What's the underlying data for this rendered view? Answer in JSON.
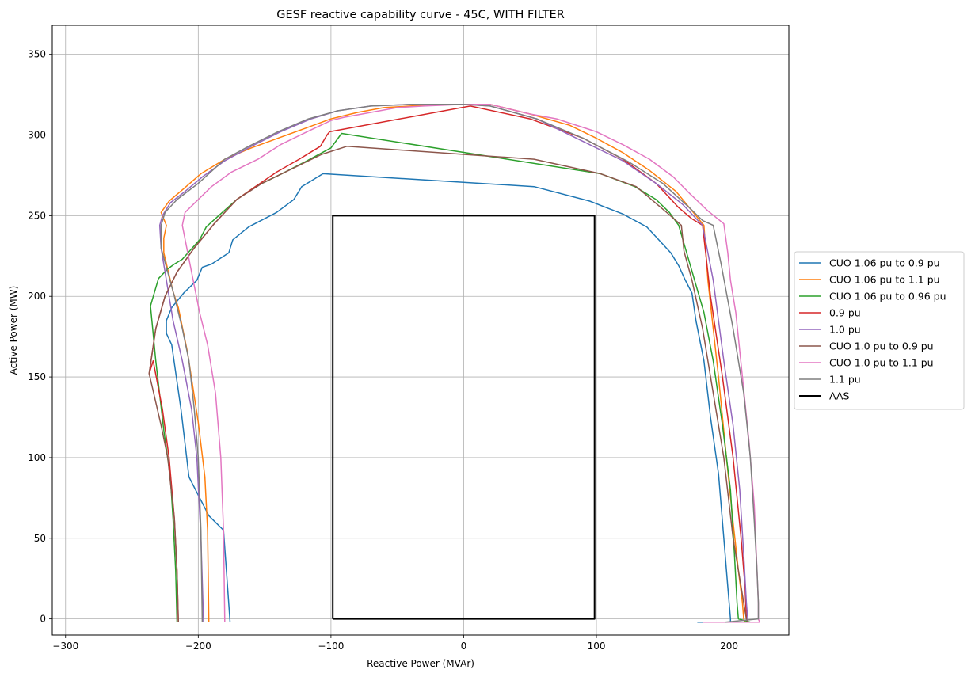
{
  "chart_data": {
    "type": "line",
    "title": "GESF reactive capability curve - 45C, WITH FILTER",
    "xlabel": "Reactive Power (MVAr)",
    "ylabel": "Active Power (MW)",
    "xlim": [
      -310,
      245
    ],
    "ylim": [
      -10,
      368
    ],
    "xticks": [
      -300,
      -200,
      -100,
      0,
      100,
      200
    ],
    "yticks": [
      0,
      50,
      100,
      150,
      200,
      250,
      300,
      350
    ],
    "grid": true,
    "legend_position": "right-outside",
    "series": [
      {
        "name": "CUO 1.06 pu to 0.9 pu",
        "color": "#1f77b4",
        "x": [
          -176,
          -181,
          -192,
          -207,
          -213,
          -220,
          -224,
          -224,
          -220,
          -211,
          -201,
          -197,
          -190,
          -177,
          -174,
          -162,
          -141,
          -128,
          -122,
          -106,
          53,
          95,
          120,
          138,
          147,
          156,
          162,
          167,
          172,
          175,
          181,
          186,
          192,
          196,
          199,
          201,
          201,
          176
        ],
        "y": [
          -2,
          55,
          64,
          88,
          130,
          170,
          177,
          185,
          193,
          202,
          210,
          218,
          220,
          227,
          235,
          243,
          252,
          260,
          268,
          276,
          268,
          259,
          251,
          243,
          235,
          227,
          219,
          210,
          202,
          185,
          160,
          125,
          90,
          50,
          20,
          0,
          -2,
          -2
        ],
        "stroke_width": 1.5
      },
      {
        "name": "CUO 1.06 pu to 1.1 pu",
        "color": "#ff7f0e",
        "x": [
          -192,
          -193,
          -195,
          -200,
          -208,
          -215,
          -219,
          -226,
          -226,
          -224,
          -228,
          -222,
          -212,
          -198,
          -180,
          -160,
          -140,
          -120,
          -100,
          -80,
          -60,
          -40,
          -20,
          0,
          20,
          50,
          80,
          100,
          120,
          140,
          160,
          181,
          184,
          192,
          198,
          203,
          207,
          210,
          211,
          212,
          192
        ],
        "y": [
          -2,
          55,
          88,
          122,
          165,
          193,
          203,
          227,
          236,
          244,
          252,
          259,
          266,
          276,
          285,
          292,
          298,
          304,
          310,
          314,
          317,
          318,
          319,
          319,
          319,
          313,
          306,
          298,
          289,
          278,
          265,
          244,
          210,
          150,
          100,
          60,
          30,
          10,
          0,
          -2,
          -2
        ],
        "stroke_width": 1.5
      },
      {
        "name": "CUO 1.06 pu to 0.96 pu",
        "color": "#2ca02c",
        "x": [
          -216,
          -217,
          -219,
          -221,
          -226,
          -232,
          -236,
          -230,
          -223,
          -218,
          -212,
          -199,
          -194,
          -186,
          -171,
          -157,
          -137,
          -118,
          -100,
          -92,
          103,
          129,
          145,
          155,
          162,
          168,
          174,
          181,
          188,
          195,
          201,
          204,
          206,
          207,
          216
        ],
        "y": [
          -2,
          30,
          62,
          88,
          117,
          160,
          194,
          211,
          217,
          220,
          223,
          235,
          243,
          249,
          260,
          268,
          276,
          284,
          292,
          301,
          276,
          268,
          260,
          252,
          244,
          227,
          210,
          190,
          160,
          120,
          80,
          40,
          10,
          0,
          -2
        ],
        "stroke_width": 1.5
      },
      {
        "name": "0.9 pu",
        "color": "#d62728",
        "x": [
          -215,
          -216,
          -218,
          -222,
          -227,
          -234,
          -237,
          -232,
          -225,
          -216,
          -203,
          -188,
          -171,
          -157,
          -141,
          -124,
          -108,
          -103,
          -101,
          5,
          50,
          90,
          120,
          145,
          162,
          172,
          180,
          186,
          195,
          203,
          209,
          212,
          213,
          214,
          212
        ],
        "y": [
          -2,
          30,
          62,
          100,
          130,
          160,
          152,
          180,
          200,
          215,
          230,
          245,
          260,
          268,
          277,
          285,
          293,
          300,
          302,
          318,
          310,
          298,
          285,
          270,
          255,
          248,
          244,
          200,
          150,
          100,
          50,
          20,
          0,
          -2,
          -2
        ],
        "stroke_width": 1.5
      },
      {
        "name": "1.0 pu",
        "color": "#9467bd",
        "x": [
          -196,
          -198,
          -201,
          -205,
          -212,
          -219,
          -224,
          -228,
          -229,
          -227,
          -221,
          -210,
          -197,
          -180,
          -160,
          -138,
          -115,
          -95,
          -70,
          -40,
          0,
          20,
          55,
          90,
          120,
          145,
          165,
          180,
          188,
          196,
          203,
          208,
          211,
          213,
          214,
          214,
          196
        ],
        "y": [
          -2,
          50,
          100,
          130,
          160,
          185,
          210,
          230,
          244,
          250,
          258,
          265,
          274,
          284,
          293,
          302,
          310,
          315,
          318,
          319,
          319,
          318,
          310,
          296,
          284,
          270,
          257,
          244,
          210,
          160,
          120,
          80,
          40,
          10,
          0,
          -2,
          -2
        ],
        "stroke_width": 1.5
      },
      {
        "name": "CUO 1.0 pu to 0.9 pu",
        "color": "#8c564b",
        "x": [
          -215,
          -216,
          -218,
          -223,
          -228,
          -235,
          -237,
          -232,
          -225,
          -216,
          -203,
          -188,
          -171,
          -152,
          -127,
          -107,
          -88,
          53,
          103,
          130,
          153,
          164,
          166,
          172,
          180,
          188,
          196,
          203,
          209,
          212,
          213,
          214,
          212
        ],
        "y": [
          -2,
          30,
          62,
          100,
          120,
          145,
          152,
          180,
          200,
          215,
          230,
          245,
          260,
          270,
          280,
          288,
          293,
          285,
          276,
          268,
          252,
          244,
          228,
          210,
          180,
          140,
          100,
          50,
          20,
          5,
          0,
          -2,
          -2
        ],
        "stroke_width": 1.5
      },
      {
        "name": "CUO 1.0 pu to 1.1 pu",
        "color": "#e377c2",
        "x": [
          -180,
          -181,
          -183,
          -187,
          -193,
          -199,
          -205,
          -212,
          -210,
          -200,
          -190,
          -175,
          -155,
          -138,
          -118,
          -100,
          -90,
          -70,
          -50,
          -30,
          0,
          20,
          50,
          70,
          100,
          120,
          140,
          158,
          170,
          184,
          196,
          199,
          201,
          205,
          210,
          215,
          219,
          221,
          222,
          222,
          223,
          180
        ],
        "y": [
          -2,
          55,
          100,
          140,
          170,
          190,
          215,
          244,
          252,
          260,
          268,
          277,
          285,
          294,
          302,
          309,
          311,
          314,
          317,
          318,
          319,
          319,
          313,
          310,
          302,
          294,
          285,
          274,
          264,
          253,
          245,
          227,
          210,
          190,
          150,
          110,
          70,
          30,
          10,
          0,
          -2,
          -2
        ],
        "stroke_width": 1.5
      },
      {
        "name": "1.1 pu",
        "color": "#7f7f7f",
        "x": [
          -197,
          -198,
          -200,
          -203,
          -207,
          -212,
          -218,
          -223,
          -228,
          -228,
          -225,
          -216,
          -200,
          -180,
          -162,
          -140,
          -117,
          -95,
          -70,
          -40,
          0,
          20,
          55,
          90,
          125,
          150,
          170,
          180,
          188,
          194,
          203,
          211,
          216,
          219,
          221,
          222,
          222,
          197
        ],
        "y": [
          -2,
          55,
          100,
          130,
          160,
          180,
          200,
          215,
          230,
          244,
          252,
          260,
          270,
          285,
          293,
          302,
          310,
          315,
          318,
          319,
          319,
          318,
          310,
          298,
          283,
          270,
          255,
          247,
          244,
          220,
          180,
          140,
          100,
          60,
          30,
          10,
          0,
          -2
        ],
        "stroke_width": 1.5
      },
      {
        "name": "AAS",
        "color": "#000000",
        "x": [
          -98.6,
          -98.6,
          98.6,
          98.6,
          -98.6
        ],
        "y": [
          0,
          250,
          250,
          0,
          0
        ],
        "stroke_width": 2
      }
    ]
  }
}
